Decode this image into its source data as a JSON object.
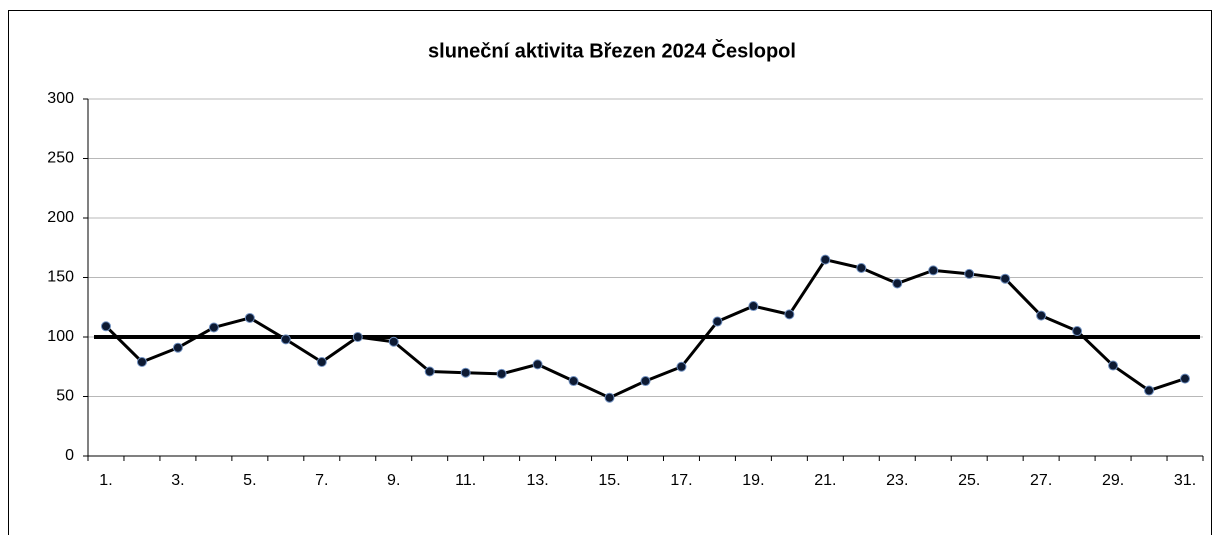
{
  "chart_data": {
    "type": "line",
    "title": "sluneční aktivita Březen 2024 Česlopol",
    "categories": [
      "1.",
      null,
      "3.",
      null,
      "5.",
      null,
      "7.",
      null,
      "9.",
      null,
      "11.",
      null,
      "13.",
      null,
      "15.",
      null,
      "17.",
      null,
      "19.",
      null,
      "21.",
      null,
      "23.",
      null,
      "25.",
      null,
      "27.",
      null,
      "29.",
      null,
      "31."
    ],
    "series": [
      {
        "color": "#000000",
        "marker_color": "#0d1a33",
        "values": [
          109,
          79,
          91,
          108,
          116,
          98,
          79,
          100,
          96,
          71,
          70,
          69,
          77,
          63,
          49,
          63,
          75,
          113,
          126,
          119,
          165,
          158,
          145,
          156,
          153,
          149,
          118,
          105,
          76,
          55,
          65
        ]
      }
    ],
    "reference_line": 100,
    "ylim": [
      0,
      300
    ],
    "yticks": [
      0,
      50,
      100,
      150,
      200,
      250,
      300
    ],
    "grid": true
  }
}
